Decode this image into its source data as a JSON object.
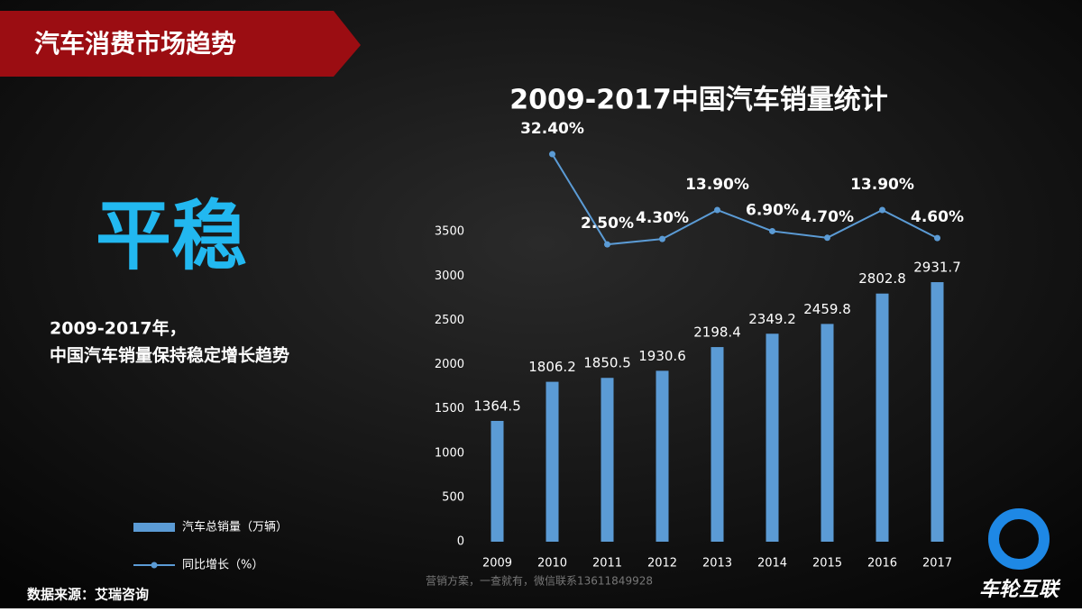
{
  "header": "汽车消费市场趋势",
  "headline": "平稳",
  "summary": [
    "2009-2017年，",
    "中国汽车销量保持稳定增长趋势"
  ],
  "source": "数据来源：艾瑞咨询",
  "watermark": "营销方案，一查就有，微信联系13611849928",
  "logo": "车轮互联",
  "chart_data": {
    "type": "bar",
    "title": "2009-2017中国汽车销量统计",
    "categories": [
      "2009",
      "2010",
      "2011",
      "2012",
      "2013",
      "2014",
      "2015",
      "2016",
      "2017"
    ],
    "series": [
      {
        "name": "汽车总销量（万辆）",
        "type": "bar",
        "color": "#5b9bd5",
        "values": [
          1364.5,
          1806.2,
          1850.5,
          1930.6,
          2198.4,
          2349.2,
          2459.8,
          2802.8,
          2931.7
        ]
      },
      {
        "name": "同比增长（%）",
        "type": "line",
        "axis": "y2",
        "color": "#5b9bd5",
        "values": [
          null,
          32.4,
          2.5,
          4.3,
          13.9,
          6.9,
          4.7,
          13.9,
          4.6
        ],
        "value_labels": [
          null,
          "32.40%",
          "2.50%",
          "4.30%",
          "13.90%",
          "6.90%",
          "4.70%",
          "13.90%",
          "4.60%"
        ]
      }
    ],
    "ylim": [
      0,
      4500
    ],
    "yticks": [
      0,
      500,
      1000,
      1500,
      2000,
      2500,
      3000,
      3500
    ],
    "y2lim": [
      -96,
      36
    ],
    "grid": false,
    "legend": "bottom-left"
  }
}
